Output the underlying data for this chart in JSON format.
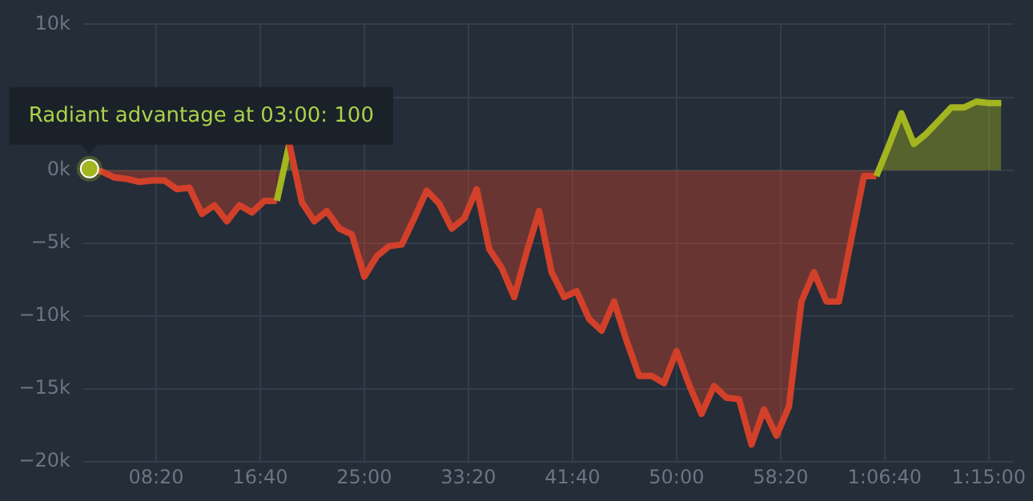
{
  "chart_data": {
    "type": "area",
    "x": [
      3,
      4,
      5,
      6,
      7,
      8,
      9,
      10,
      11,
      12,
      13,
      14,
      15,
      16,
      17,
      18,
      19,
      20,
      21,
      22,
      23,
      24,
      25,
      26,
      27,
      28,
      29,
      30,
      31,
      32,
      33,
      34,
      35,
      36,
      37,
      38,
      39,
      40,
      41,
      42,
      43,
      44,
      45,
      46,
      47,
      48,
      49,
      50,
      51,
      52,
      53,
      54,
      55,
      56,
      57,
      58,
      59,
      60,
      61,
      62,
      63,
      64,
      65,
      66,
      67,
      68,
      69,
      70,
      71,
      72,
      73,
      74,
      75,
      76
    ],
    "series": [
      {
        "values": [
          100,
          -100,
          -500,
          -600,
          -800,
          -700,
          -700,
          -1300,
          -1200,
          -3000,
          -2400,
          -3500,
          -2400,
          -2900,
          -2100,
          -2100,
          1800,
          -2200,
          -3500,
          -2800,
          -4000,
          -4400,
          -7300,
          -5900,
          -5200,
          -5100,
          -3300,
          -1400,
          -2300,
          -4000,
          -3300,
          -1300,
          -5400,
          -6700,
          -8700,
          -5600,
          -2800,
          -7000,
          -8700,
          -8300,
          -10200,
          -11000,
          -9000,
          -11700,
          -14100,
          -14100,
          -14600,
          -12400,
          -14700,
          -16700,
          -14800,
          -15600,
          -15700,
          -18800,
          -16400,
          -18200,
          -16200,
          -9000,
          -7000,
          -9000,
          -9000,
          -4700,
          -400,
          -400,
          1700,
          3900,
          1800,
          2500,
          3400,
          4300,
          4300,
          4700,
          4600,
          4600
        ],
        "colors": [
          "#a3b51f",
          "#d2402a",
          "#d2402a",
          "#d2402a",
          "#d2402a",
          "#d2402a",
          "#d2402a",
          "#d2402a",
          "#d2402a",
          "#d2402a",
          "#d2402a",
          "#d2402a",
          "#d2402a",
          "#d2402a",
          "#d2402a",
          "#d2402a",
          "#a3b51f",
          "#d2402a",
          "#d2402a",
          "#d2402a",
          "#d2402a",
          "#d2402a",
          "#d2402a",
          "#d2402a",
          "#d2402a",
          "#d2402a",
          "#d2402a",
          "#d2402a",
          "#d2402a",
          "#d2402a",
          "#d2402a",
          "#d2402a",
          "#d2402a",
          "#d2402a",
          "#d2402a",
          "#d2402a",
          "#d2402a",
          "#d2402a",
          "#d2402a",
          "#d2402a",
          "#d2402a",
          "#d2402a",
          "#d2402a",
          "#d2402a",
          "#d2402a",
          "#d2402a",
          "#d2402a",
          "#d2402a",
          "#d2402a",
          "#d2402a",
          "#d2402a",
          "#d2402a",
          "#d2402a",
          "#d2402a",
          "#d2402a",
          "#d2402a",
          "#d2402a",
          "#d2402a",
          "#d2402a",
          "#d2402a",
          "#d2402a",
          "#d2402a",
          "#d2402a",
          "#d2402a",
          "#a3b51f",
          "#a3b51f",
          "#a3b51f",
          "#a3b51f",
          "#a3b51f",
          "#a3b51f",
          "#a3b51f",
          "#a3b51f",
          "#a3b51f",
          "#a3b51f"
        ]
      }
    ],
    "xlim": [
      2.5,
      77
    ],
    "xticks": [
      {
        "value": 8.3333,
        "label": "08:20"
      },
      {
        "value": 16.6667,
        "label": "16:40"
      },
      {
        "value": 25,
        "label": "25:00"
      },
      {
        "value": 33.3333,
        "label": "33:20"
      },
      {
        "value": 41.6667,
        "label": "41:40"
      },
      {
        "value": 50,
        "label": "50:00"
      },
      {
        "value": 58.3333,
        "label": "58:20"
      },
      {
        "value": 66.6667,
        "label": "1:06:40"
      },
      {
        "value": 75,
        "label": "1:15:00"
      }
    ],
    "ylim": [
      -20000,
      10000
    ],
    "yticks": [
      {
        "value": -20000,
        "label": "−20k"
      },
      {
        "value": -15000,
        "label": "−15k"
      },
      {
        "value": -10000,
        "label": "−10k"
      },
      {
        "value": -5000,
        "label": "−5k"
      },
      {
        "value": 0,
        "label": "0k"
      },
      {
        "value": 5000,
        "label": null
      },
      {
        "value": 10000,
        "label": "10k"
      }
    ],
    "grid": true,
    "annotations": [
      {
        "text": "Radiant advantage at 03:00: 100",
        "x": 3,
        "y": 100
      }
    ]
  }
}
